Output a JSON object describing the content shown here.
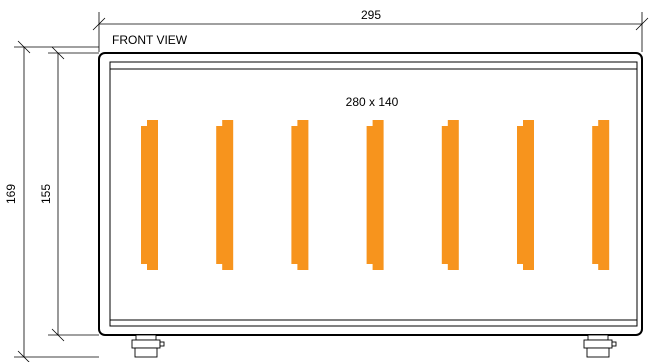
{
  "drawing": {
    "view_label": "FRONT VIEW",
    "dims": {
      "overall_width": "295",
      "overall_height": "169",
      "body_height": "155",
      "opening": "280 x 140"
    },
    "colors": {
      "line": "#000000",
      "bar_fill": "#F7941D"
    },
    "bar_count": 7,
    "foot_count": 2
  }
}
